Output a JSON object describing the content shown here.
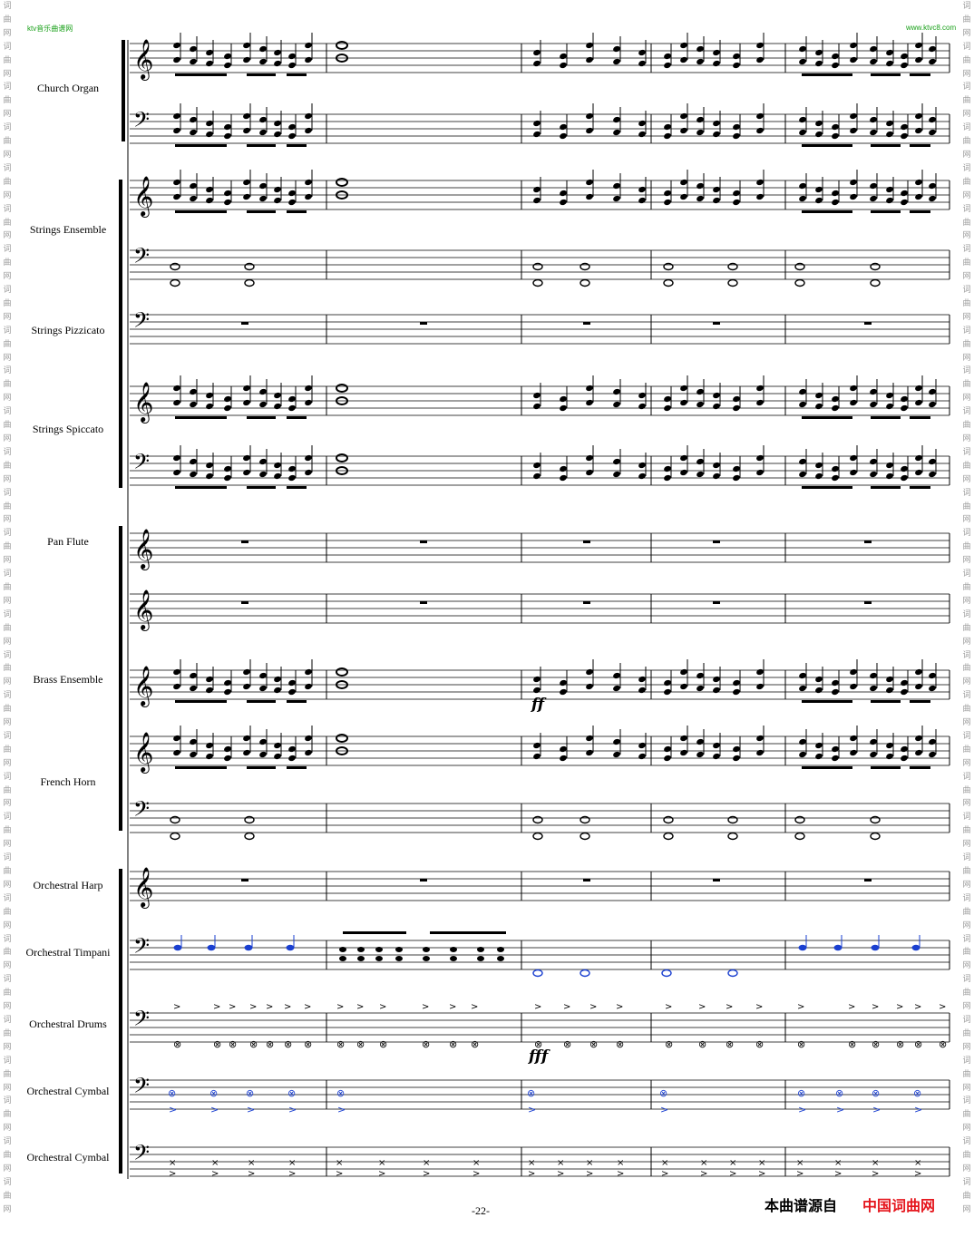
{
  "header": {
    "left_site": "ktv音乐曲谱网",
    "right_site": "www.ktvc8.com"
  },
  "side_stamp": "词曲网词曲网词曲网词曲网词曲网词曲网词曲网词曲网词曲网词曲网词曲网词曲网词曲网词曲网词曲网词曲网词曲网词曲网词曲网词曲网词曲网词曲网词曲网词曲网词曲网词曲网词曲网词曲网词曲网词曲网",
  "instruments": [
    "Church Organ",
    "Strings Ensemble",
    "Strings Pizzicato",
    "Strings Spiccato",
    "Pan Flute",
    "Brass Ensemble",
    "French Horn",
    "Orchestral Harp",
    "Orchestral Timpani",
    "Orchestral Drums",
    "Orchestral Cymbal",
    "Orchestral Cymbal"
  ],
  "dynamics": {
    "brass": "ff",
    "drums": "fff"
  },
  "page_number": "-22-",
  "footer": {
    "source_label": "本曲谱源自",
    "source_name": "中国词曲网"
  },
  "colors": {
    "site_green": "#19a019",
    "brand_red": "#e5161d",
    "note_blue": "#1a3fd0"
  }
}
